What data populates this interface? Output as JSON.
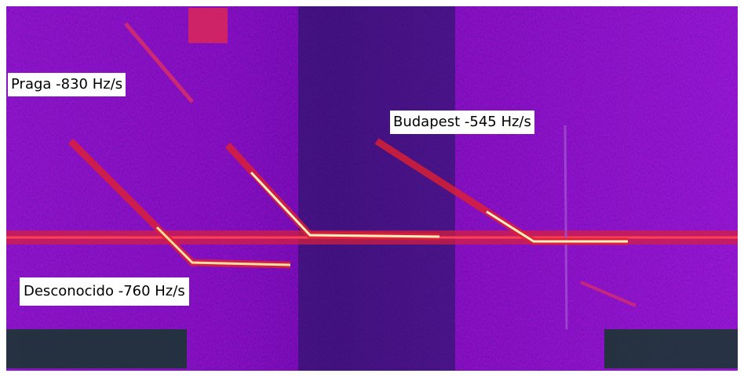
{
  "annotations": [
    {
      "text": "Praga -830 Hz/s"
    },
    {
      "text": "Budapest -545 Hz/s"
    },
    {
      "text": "Desconocido -760 Hz/s"
    }
  ]
}
